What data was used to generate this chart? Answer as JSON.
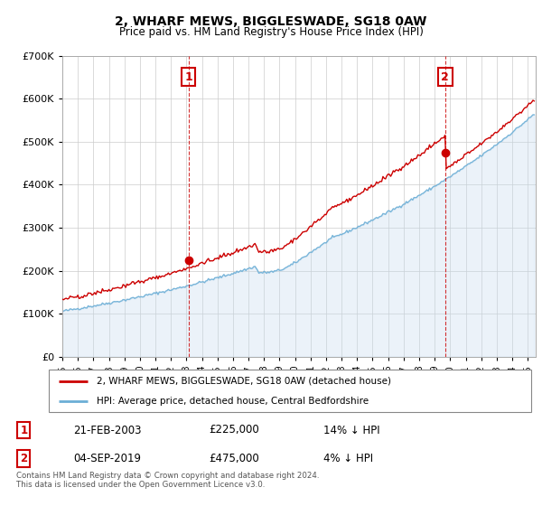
{
  "title": "2, WHARF MEWS, BIGGLESWADE, SG18 0AW",
  "subtitle": "Price paid vs. HM Land Registry's House Price Index (HPI)",
  "legend_line1": "2, WHARF MEWS, BIGGLESWADE, SG18 0AW (detached house)",
  "legend_line2": "HPI: Average price, detached house, Central Bedfordshire",
  "transaction1_date": "21-FEB-2003",
  "transaction1_price": "£225,000",
  "transaction1_hpi": "14% ↓ HPI",
  "transaction2_date": "04-SEP-2019",
  "transaction2_price": "£475,000",
  "transaction2_hpi": "4% ↓ HPI",
  "footnote": "Contains HM Land Registry data © Crown copyright and database right 2024.\nThis data is licensed under the Open Government Licence v3.0.",
  "hpi_color": "#6baed6",
  "hpi_fill_color": "#c6dbef",
  "price_color": "#cc0000",
  "dashed_color": "#cc0000",
  "background_color": "#ffffff",
  "grid_color": "#cccccc",
  "ylim": [
    0,
    700000
  ],
  "yticks": [
    0,
    100000,
    200000,
    300000,
    400000,
    500000,
    600000,
    700000
  ],
  "xlim_start": 1995.0,
  "xlim_end": 2025.5,
  "transaction1_x": 2003.13,
  "transaction1_y": 225000,
  "transaction2_x": 2019.67,
  "transaction2_y": 475000
}
